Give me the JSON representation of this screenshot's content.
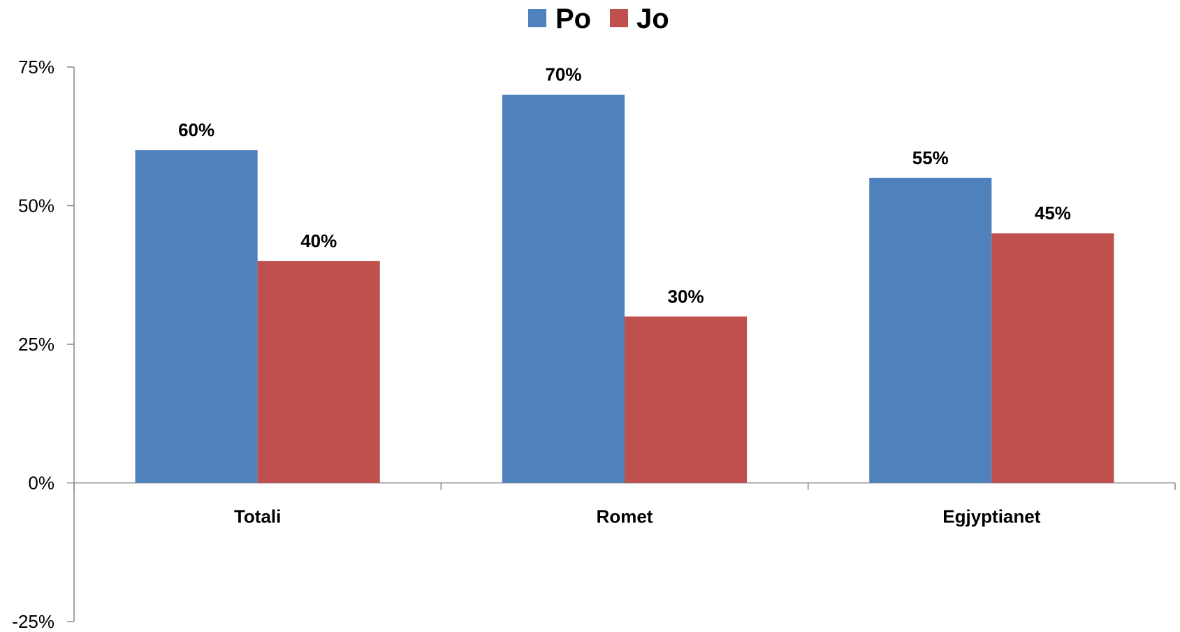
{
  "chart_data": {
    "type": "bar",
    "categories": [
      "Totali",
      "Romet",
      "Egjyptianet"
    ],
    "series": [
      {
        "name": "Po",
        "color": "#4F81BD",
        "values": [
          60,
          70,
          55
        ],
        "labels": [
          "60%",
          "70%",
          "55%"
        ]
      },
      {
        "name": "Jo",
        "color": "#C0504D",
        "values": [
          40,
          30,
          45
        ],
        "labels": [
          "40%",
          "30%",
          "45%"
        ]
      }
    ],
    "ylim": [
      -25,
      75
    ],
    "yticks": [
      -25,
      0,
      25,
      50,
      75
    ],
    "ytick_labels": [
      "-25%",
      "0%",
      "25%",
      "50%",
      "75%"
    ],
    "legend_position": "top-center",
    "grid": false
  }
}
